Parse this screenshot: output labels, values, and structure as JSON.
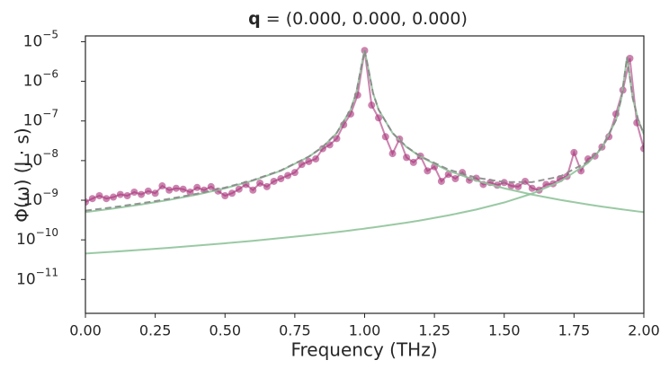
{
  "chart_data": {
    "type": "line",
    "log_y": true,
    "title_symbol": "q",
    "title": " = (0.000, 0.000, 0.000)",
    "x_label": "Frequency (THz)",
    "y_label": "Φ(ω) (J · s)",
    "xlim": [
      0,
      2
    ],
    "ylim": [
      1.4e-12,
      1.4e-05
    ],
    "xticks": [
      {
        "value": 0,
        "label": "0.00"
      },
      0.25,
      {
        "value": 0.5,
        "label": "0.50"
      },
      0.75,
      {
        "value": 1,
        "label": "1.00"
      },
      1.25,
      {
        "value": 1.5,
        "label": "1.50"
      },
      1.75,
      {
        "value": 2,
        "label": "2.00"
      }
    ],
    "yticks": [
      {
        "value": 1e-11,
        "label": "10",
        "exponent": "−11"
      },
      {
        "value": 1e-10,
        "label": "10",
        "exponent": "−10"
      },
      {
        "value": 1e-09,
        "label": "10",
        "exponent": "−9"
      },
      {
        "value": 1e-08,
        "label": "10",
        "exponent": "−8"
      },
      {
        "value": 1e-07,
        "label": "10",
        "exponent": "−7"
      },
      {
        "value": 1e-06,
        "label": "10",
        "exponent": "−6"
      },
      {
        "value": 1e-05,
        "label": "10",
        "exponent": "−5"
      }
    ],
    "series": [
      {
        "color": "#a8327a",
        "marker": "circle",
        "linestyle": "solid",
        "x": [
          0,
          0.025,
          0.05,
          0.075,
          0.1,
          0.125,
          0.15,
          0.175,
          0.2,
          0.225,
          0.25,
          0.275,
          0.3,
          0.325,
          0.35,
          0.375,
          0.4,
          0.425,
          0.45,
          0.475,
          0.5,
          0.525,
          0.55,
          0.575,
          0.6,
          0.625,
          0.65,
          0.675,
          0.7,
          0.725,
          0.75,
          0.775,
          0.8,
          0.825,
          0.85,
          0.875,
          0.9,
          0.925,
          0.95,
          0.975,
          1.0,
          1.025,
          1.05,
          1.075,
          1.1,
          1.125,
          1.15,
          1.175,
          1.2,
          1.225,
          1.25,
          1.275,
          1.3,
          1.325,
          1.35,
          1.375,
          1.4,
          1.425,
          1.45,
          1.475,
          1.5,
          1.525,
          1.55,
          1.575,
          1.6,
          1.625,
          1.65,
          1.675,
          1.7,
          1.725,
          1.75,
          1.775,
          1.8,
          1.825,
          1.85,
          1.875,
          1.9,
          1.925,
          1.95,
          1.975,
          2.0
        ],
        "values": [
          9e-10,
          1.1e-09,
          1.3e-09,
          1.1e-09,
          1.2e-09,
          1.4e-09,
          1.3e-09,
          1.6e-09,
          1.4e-09,
          1.7e-09,
          1.5e-09,
          2.3e-09,
          1.8e-09,
          2e-09,
          1.9e-09,
          1.6e-09,
          2.1e-09,
          1.8e-09,
          2.2e-09,
          1.7e-09,
          1.3e-09,
          1.5e-09,
          1.9e-09,
          2.5e-09,
          1.8e-09,
          2.7e-09,
          2.2e-09,
          3e-09,
          3.5e-09,
          4.2e-09,
          5e-09,
          8e-09,
          9.5e-09,
          1.1e-08,
          2e-08,
          2.5e-08,
          3.6e-08,
          8e-08,
          1.5e-07,
          4.5e-07,
          6e-06,
          2.5e-07,
          1.2e-07,
          4e-08,
          1.5e-08,
          3.5e-08,
          1.2e-08,
          9e-09,
          1.3e-08,
          5.5e-09,
          7e-09,
          3e-09,
          4.5e-09,
          3.5e-09,
          5e-09,
          3.2e-09,
          3.6e-09,
          2.5e-09,
          2.8e-09,
          2.4e-09,
          2.8e-09,
          2.3e-09,
          2.2e-09,
          3e-09,
          2e-09,
          1.8e-09,
          2.5e-09,
          2.6e-09,
          3.5e-09,
          4e-09,
          1.6e-08,
          5.5e-09,
          1.1e-08,
          1.3e-08,
          2.2e-08,
          4e-08,
          1.5e-07,
          6e-07,
          3.8e-06,
          9e-08,
          2e-08
        ]
      },
      {
        "color": "#8fc39a",
        "linestyle": "solid",
        "x": [
          0,
          0.1,
          0.2,
          0.3,
          0.4,
          0.5,
          0.6,
          0.7,
          0.8,
          0.85,
          0.9,
          0.95,
          0.97,
          0.99,
          1.0,
          1.01,
          1.03,
          1.05,
          1.1,
          1.15,
          1.2,
          1.3,
          1.4,
          1.5,
          1.6,
          1.7,
          1.8,
          1.85,
          1.9,
          1.92,
          1.94,
          1.96,
          1.98,
          2.0
        ],
        "values": [
          5e-10,
          6.17e-10,
          7.81e-10,
          1.02e-09,
          1.39e-09,
          2e-09,
          3.12e-09,
          5.55e-09,
          1.25e-08,
          2.21e-08,
          4.96e-08,
          1.93e-07,
          5.09e-07,
          2.73e-06,
          6.02e-06,
          2.73e-06,
          5.09e-07,
          1.93e-07,
          4.96e-08,
          2.21e-08,
          1.25e-08,
          5.55e-09,
          3.12e-09,
          2e-09,
          1.39e-09,
          1.02e-09,
          7.81e-10,
          6.91e-10,
          6.17e-10,
          5.9e-10,
          5.66e-10,
          5.42e-10,
          5.2e-10,
          5e-10
        ]
      },
      {
        "color": "#8fc39a",
        "linestyle": "solid",
        "x": [
          0,
          0.1,
          0.2,
          0.3,
          0.4,
          0.5,
          0.6,
          0.7,
          0.8,
          0.85,
          0.9,
          0.95,
          0.97,
          0.99,
          1.0,
          1.01,
          1.03,
          1.05,
          1.1,
          1.15,
          1.2,
          1.3,
          1.4,
          1.5,
          1.6,
          1.7,
          1.8,
          1.85,
          1.9,
          1.92,
          1.94,
          1.96,
          1.98,
          2.0
        ],
        "values": [
          4.52e-11,
          5.02e-11,
          5.61e-11,
          6.32e-11,
          7.17e-11,
          8.2e-11,
          9.47e-11,
          1.11e-10,
          1.31e-10,
          1.43e-10,
          1.57e-10,
          1.73e-10,
          1.81e-10,
          1.88e-10,
          1.92e-10,
          1.97e-10,
          2.05e-10,
          2.15e-10,
          2.41e-10,
          2.72e-10,
          3.1e-10,
          4.15e-10,
          5.83e-10,
          8.78e-10,
          1.47e-09,
          2.95e-09,
          8.65e-09,
          2.09e-08,
          1.04e-07,
          3.85e-07,
          4.05e-06,
          3.85e-07,
          1.04e-07,
          4.66e-08
        ]
      },
      {
        "color": "#888888",
        "linestyle": "dashed",
        "x": [
          0,
          0.1,
          0.2,
          0.3,
          0.4,
          0.5,
          0.6,
          0.7,
          0.8,
          0.85,
          0.9,
          0.95,
          0.97,
          0.99,
          1.0,
          1.01,
          1.03,
          1.05,
          1.1,
          1.15,
          1.2,
          1.3,
          1.4,
          1.5,
          1.6,
          1.7,
          1.8,
          1.85,
          1.9,
          1.92,
          1.94,
          1.96,
          1.98,
          2.0
        ],
        "values": [
          5.45e-10,
          6.67e-10,
          8.37e-10,
          1.08e-09,
          1.46e-09,
          2.08e-09,
          3.21e-09,
          5.66e-09,
          1.26e-08,
          2.22e-08,
          4.98e-08,
          1.93e-07,
          5.09e-07,
          2.73e-06,
          6.02e-06,
          2.73e-06,
          5.09e-07,
          1.93e-07,
          4.98e-08,
          2.24e-08,
          1.28e-08,
          5.97e-09,
          3.7e-09,
          2.88e-09,
          2.86e-09,
          3.97e-09,
          9.43e-09,
          2.16e-08,
          1.05e-07,
          3.86e-07,
          4.05e-06,
          3.86e-07,
          1.05e-07,
          4.71e-08
        ]
      }
    ]
  }
}
